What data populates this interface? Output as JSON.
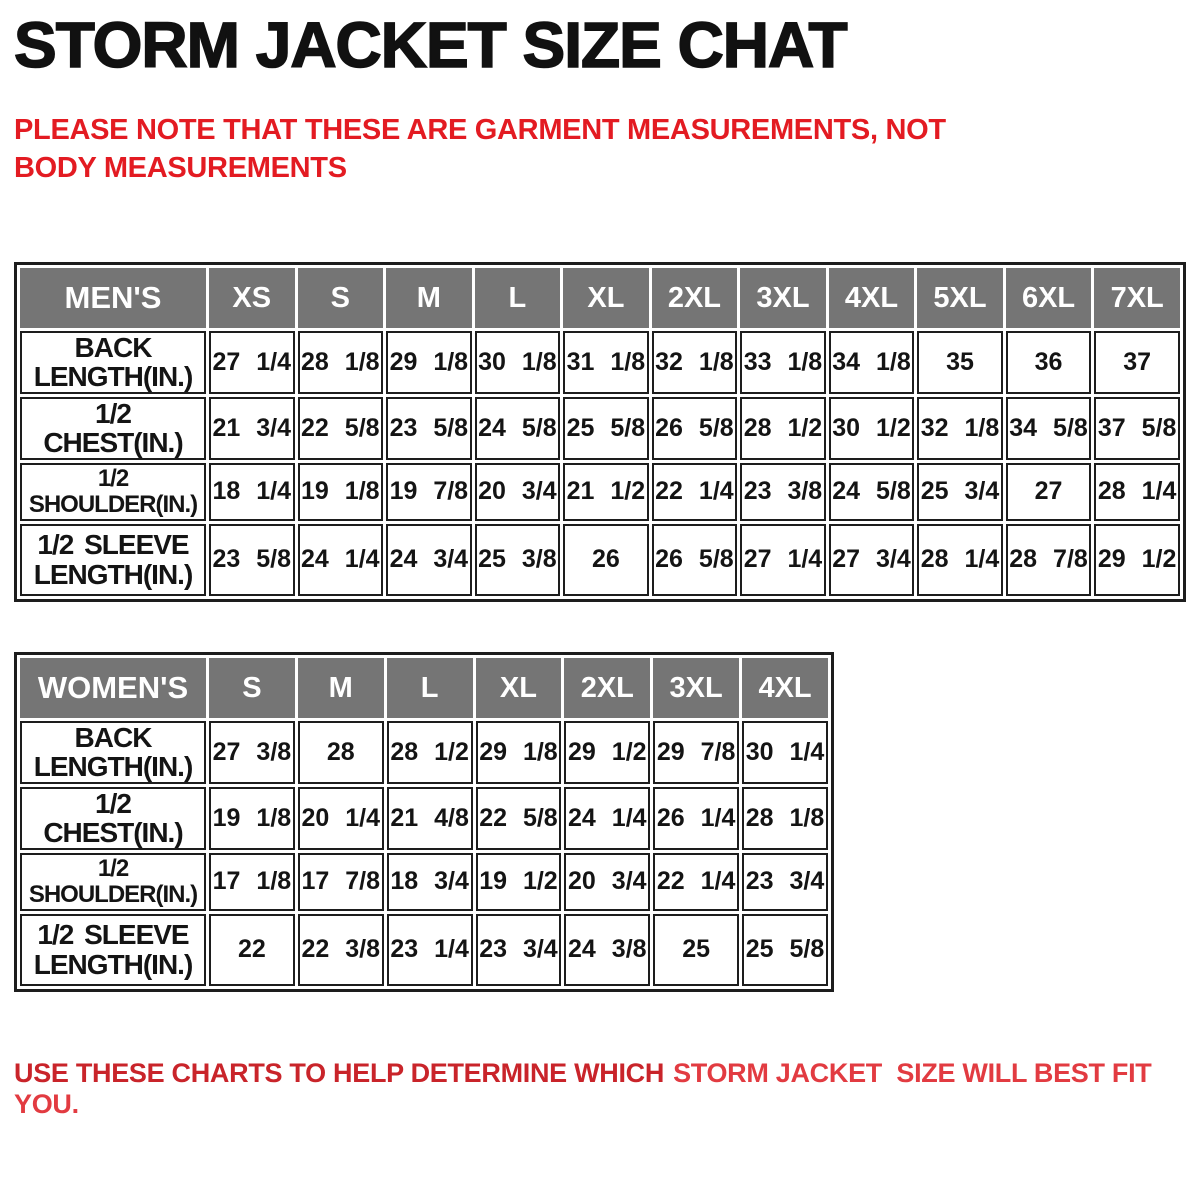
{
  "page_title": "STORM JACKET SIZE CHAT",
  "note": "PLEASE NOTE THAT THESE ARE GARMENT MEASUREMENTS, NOT BODY MEASUREMENTS",
  "footer": {
    "part1": "USE THESE CHARTS TO HELP DETERMINE WHICH",
    "part2": "STORM JACKET  SIZE WILL BEST FIT YOU."
  },
  "colors": {
    "title_black": "#111111",
    "note_red": "#e31b22",
    "footer_red_1": "#c9242a",
    "footer_red_2": "#e23b41",
    "header_gray": "#757575",
    "header_text": "#ffffff",
    "border_black": "#1d1d1d"
  },
  "chart_data": [
    {
      "type": "table",
      "title": "MEN'S",
      "headers": [
        "MEN'S",
        "XS",
        "S",
        "M",
        "L",
        "XL",
        "2XL",
        "3XL",
        "4XL",
        "5XL",
        "6XL",
        "7XL"
      ],
      "rows": [
        {
          "label": "BACK\nLENGTH(IN.)",
          "values": [
            "27 1/4",
            "28 1/8",
            "29 1/8",
            "30 1/8",
            "31 1/8",
            "32 1/8",
            "33 1/8",
            "34 1/8",
            "35",
            "36",
            "37"
          ]
        },
        {
          "label": "1/2 CHEST(IN.)",
          "values": [
            "21 3/4",
            "22 5/8",
            "23 5/8",
            "24 5/8",
            "25 5/8",
            "26 5/8",
            "28 1/2",
            "30 1/2",
            "32 1/8",
            "34 5/8",
            "37 5/8"
          ]
        },
        {
          "label": "1/2 SHOULDER(IN.)",
          "values": [
            "18 1/4",
            "19 1/8",
            "19 7/8",
            "20 3/4",
            "21 1/2",
            "22 1/4",
            "23 3/8",
            "24 5/8",
            "25 3/4",
            "27",
            "28 1/4"
          ]
        },
        {
          "label": "1/2 SLEEVE\nLENGTH(IN.)",
          "values": [
            "23 5/8",
            "24 1/4",
            "24 3/4",
            "25 3/8",
            "26",
            "26 5/8",
            "27 1/4",
            "27 3/4",
            "28 1/4",
            "28 7/8",
            "29 1/2"
          ]
        }
      ]
    },
    {
      "type": "table",
      "title": "WOMEN'S",
      "headers": [
        "WOMEN'S",
        "S",
        "M",
        "L",
        "XL",
        "2XL",
        "3XL",
        "4XL"
      ],
      "rows": [
        {
          "label": "BACK\nLENGTH(IN.)",
          "values": [
            "27 3/8",
            "28",
            "28 1/2",
            "29 1/8",
            "29 1/2",
            "29 7/8",
            "30 1/4"
          ]
        },
        {
          "label": "1/2 CHEST(IN.)",
          "values": [
            "19 1/8",
            "20 1/4",
            "21 4/8",
            "22 5/8",
            "24 1/4",
            "26 1/4",
            "28 1/8"
          ]
        },
        {
          "label": "1/2 SHOULDER(IN.)",
          "values": [
            "17 1/8",
            "17 7/8",
            "18 3/4",
            "19 1/2",
            "20 3/4",
            "22 1/4",
            "23 3/4"
          ]
        },
        {
          "label": "1/2 SLEEVE\nLENGTH(IN.)",
          "values": [
            "22",
            "22 3/8",
            "23 1/4",
            "23 3/4",
            "24 3/8",
            "25",
            "25 5/8"
          ]
        }
      ]
    }
  ]
}
